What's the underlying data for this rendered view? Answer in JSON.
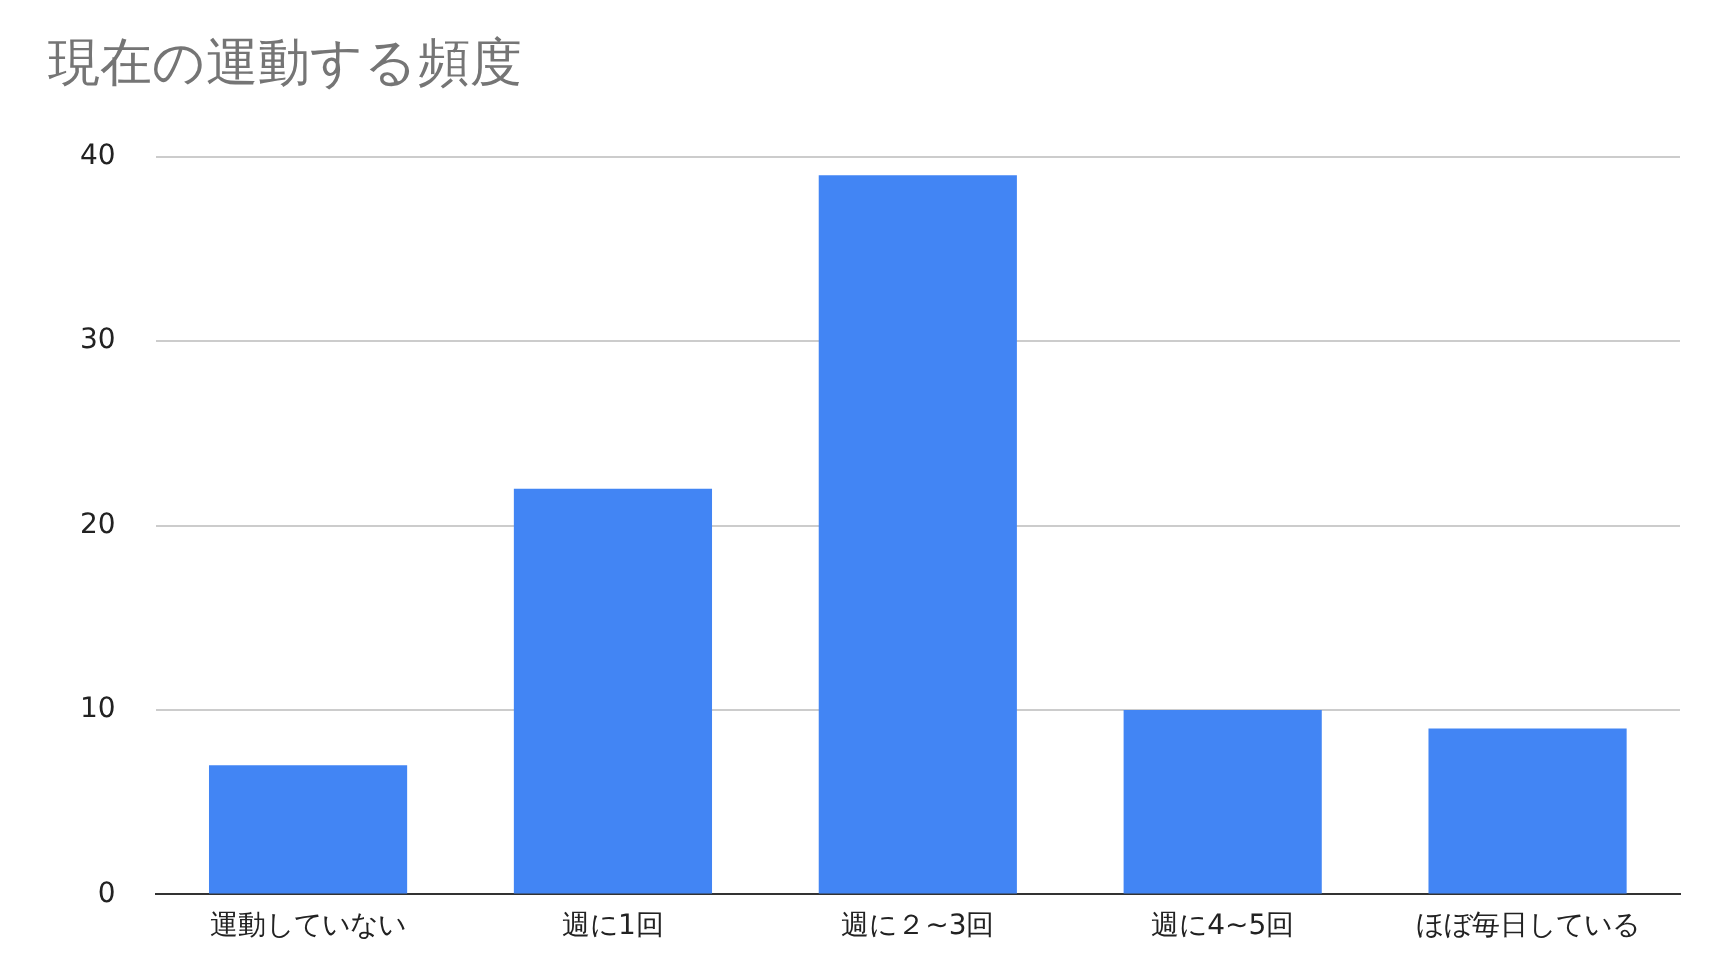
{
  "chart_data": {
    "type": "bar",
    "title": "現在の運動する頻度",
    "categories": [
      "運動していない",
      "週に1回",
      "週に２~3回",
      "週に4~5回",
      "ほぼ毎日している"
    ],
    "values": [
      7,
      22,
      39,
      10,
      9
    ],
    "color": "#4285f4",
    "ylim": [
      0,
      40
    ],
    "yticks": [
      0,
      10,
      20,
      30,
      40
    ],
    "grid": "y",
    "legend": false
  }
}
